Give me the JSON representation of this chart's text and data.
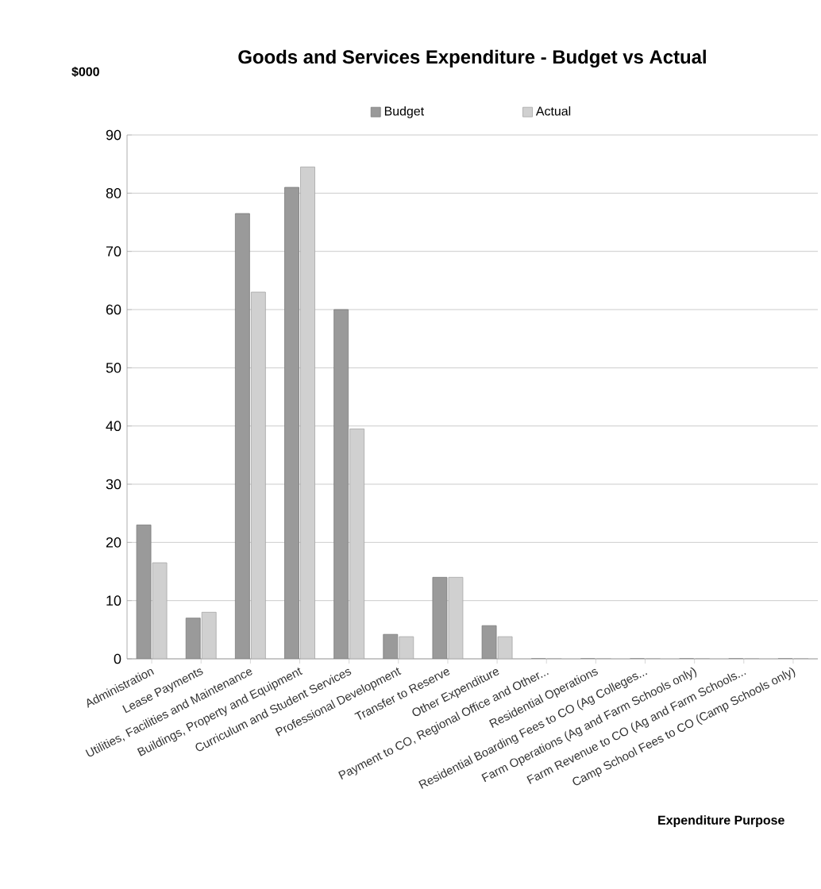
{
  "chart_data": {
    "type": "bar",
    "title": "Goods and Services Expenditure - Budget vs Actual",
    "ylabel": "$000",
    "xlabel": "Expenditure Purpose",
    "categories": [
      "Administration",
      "Lease Payments",
      "Utilities, Facilities and Maintenance",
      "Buildings, Property and Equipment",
      "Curriculum and Student Services",
      "Professional Development",
      "Transfer to Reserve",
      "Other Expenditure",
      "Payment to CO, Regional Office and Other...",
      "Residential Operations",
      "Residential Boarding Fees to CO (Ag Colleges...",
      "Farm Operations (Ag and Farm Schools only)",
      "Farm Revenue to CO (Ag and Farm Schools...",
      "Camp School Fees to CO (Camp Schools only)"
    ],
    "series": [
      {
        "name": "Budget",
        "color": "#9a9a9a",
        "values": [
          23,
          7,
          76.5,
          81,
          60,
          4.2,
          14,
          5.7,
          0,
          0,
          0,
          0,
          0,
          0
        ]
      },
      {
        "name": "Actual",
        "color": "#d0d0d0",
        "values": [
          16.5,
          8,
          63,
          84.5,
          39.5,
          3.8,
          14,
          3.8,
          0,
          0,
          0,
          0,
          0,
          0
        ]
      }
    ],
    "ylim": [
      0,
      90
    ],
    "yticks": [
      0,
      10,
      20,
      30,
      40,
      50,
      60,
      70,
      80,
      90
    ],
    "grid": "y",
    "legend": "top"
  }
}
